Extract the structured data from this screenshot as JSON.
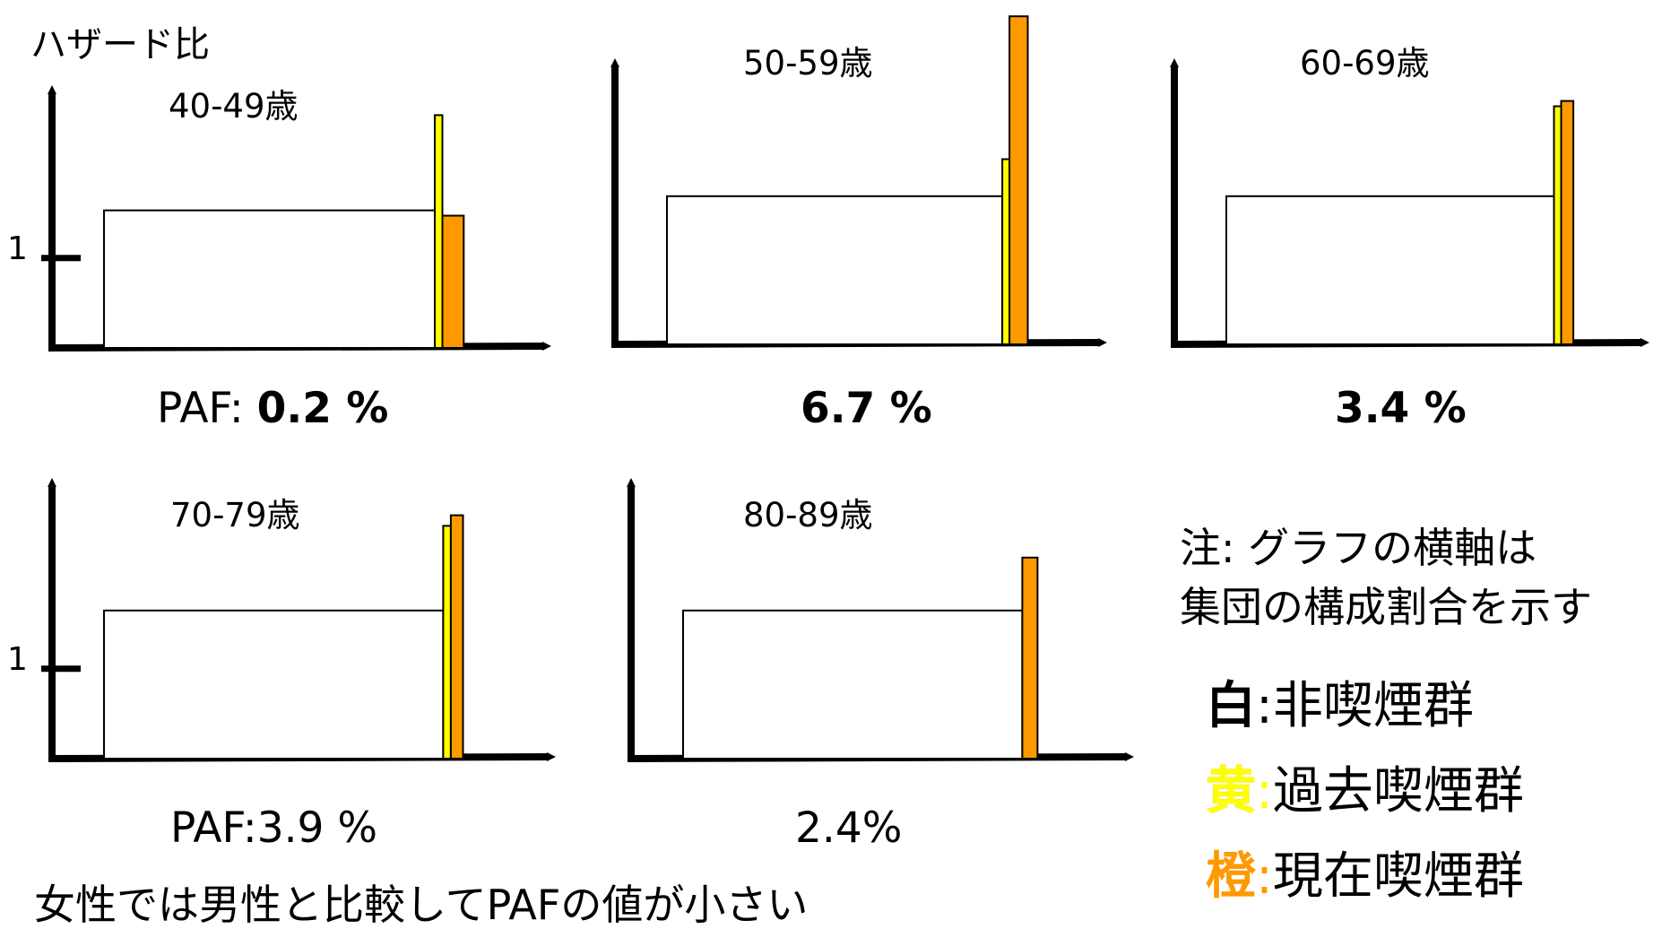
{
  "y_axis_label": "ハザード比",
  "tick_one": "1",
  "colors": {
    "nonsmoker": "#ffffff",
    "former": "#ffff00",
    "current": "#ff9900",
    "axis": "#000000"
  },
  "chart_data": [
    {
      "type": "bar",
      "title": "40-49歳",
      "ylabel": "ハザード比",
      "y_tick_labels": [
        "1"
      ],
      "paf_prefix": "PAF: ",
      "paf_value": "0.2 %",
      "paf_bold": true,
      "series": [
        {
          "name": "非喫煙群",
          "population_share": 0.9,
          "hazard_ratio": 1.3
        },
        {
          "name": "過去喫煙群",
          "population_share": 0.025,
          "hazard_ratio": 2.2
        },
        {
          "name": "現在喫煙群",
          "population_share": 0.07,
          "hazard_ratio": 1.25
        }
      ]
    },
    {
      "type": "bar",
      "title": "50-59歳",
      "ylabel": "",
      "paf_prefix": "",
      "paf_value": "6.7 %",
      "paf_bold": true,
      "series": [
        {
          "name": "非喫煙群",
          "population_share": 0.87,
          "hazard_ratio": 1.4
        },
        {
          "name": "過去喫煙群",
          "population_share": 0.02,
          "hazard_ratio": 1.75
        },
        {
          "name": "現在喫煙群",
          "population_share": 0.06,
          "hazard_ratio": 3.1
        }
      ]
    },
    {
      "type": "bar",
      "title": "60-69歳",
      "ylabel": "",
      "paf_prefix": "",
      "paf_value": "3.4 %",
      "paf_bold": true,
      "series": [
        {
          "name": "非喫煙群",
          "population_share": 0.85,
          "hazard_ratio": 1.4
        },
        {
          "name": "過去喫煙群",
          "population_share": 0.02,
          "hazard_ratio": 2.25
        },
        {
          "name": "現在喫煙群",
          "population_share": 0.04,
          "hazard_ratio": 2.3
        }
      ]
    },
    {
      "type": "bar",
      "title": "70-79歳",
      "ylabel": "",
      "y_tick_labels": [
        "1"
      ],
      "paf_prefix": "",
      "paf_value": "PAF:3.9 %",
      "paf_bold": false,
      "series": [
        {
          "name": "非喫煙群",
          "population_share": 0.88,
          "hazard_ratio": 1.4
        },
        {
          "name": "過去喫煙群",
          "population_share": 0.025,
          "hazard_ratio": 2.2
        },
        {
          "name": "現在喫煙群",
          "population_share": 0.04,
          "hazard_ratio": 2.3
        }
      ]
    },
    {
      "type": "bar",
      "title": "80-89歳",
      "ylabel": "",
      "paf_prefix": "",
      "paf_value": "2.4%",
      "paf_bold": false,
      "series": [
        {
          "name": "非喫煙群",
          "population_share": 0.88,
          "hazard_ratio": 1.4
        },
        {
          "name": "現在喫煙群",
          "population_share": 0.05,
          "hazard_ratio": 1.9
        }
      ]
    }
  ],
  "note_lines": [
    "注: グラフの横軸は",
    "集団の構成割合を示す"
  ],
  "legend": [
    {
      "key": "白",
      "sep": ":",
      "label": "非喫煙群",
      "key_color": "#000000"
    },
    {
      "key": "黄",
      "sep": ":",
      "label": "過去喫煙群",
      "key_color": "#ffff00"
    },
    {
      "key": "橙",
      "sep": ":",
      "label": "現在喫煙群",
      "key_color": "#ff9900"
    }
  ],
  "footer": "女性では男性と比較してPAFの値が小さい"
}
